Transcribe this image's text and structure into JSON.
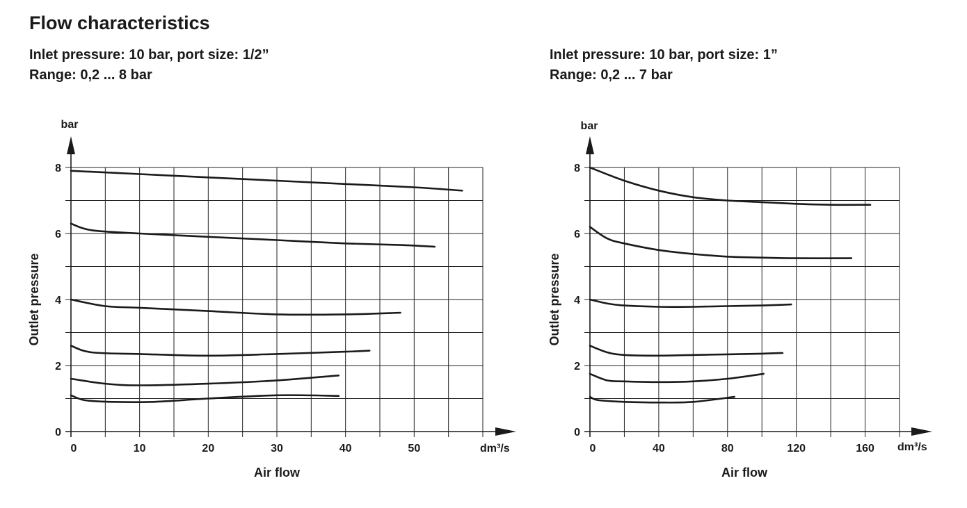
{
  "page": {
    "title": "Flow characteristics"
  },
  "colors": {
    "ink": "#1a1a1a",
    "grid": "#222222"
  },
  "chart_data": [
    {
      "type": "line",
      "subtitle": "Inlet pressure: 10 bar, port size: 1/2”",
      "range": "Range: 0,2 ... 8 bar",
      "xlabel": "Air flow",
      "x_unit": "dm³/s",
      "ylabel": "Outlet pressure",
      "y_unit": "bar",
      "xlim": [
        0,
        60
      ],
      "ylim": [
        0,
        8
      ],
      "x_ticks": [
        0,
        10,
        20,
        30,
        40,
        50
      ],
      "y_ticks": [
        0,
        2,
        4,
        6,
        8
      ],
      "x_grid_step": 5,
      "y_grid_step": 1,
      "grid": true,
      "series": [
        {
          "x": [
            0,
            10,
            20,
            30,
            40,
            50,
            57
          ],
          "y": [
            7.9,
            7.8,
            7.7,
            7.6,
            7.5,
            7.4,
            7.3
          ]
        },
        {
          "x": [
            0,
            3,
            10,
            20,
            30,
            40,
            48,
            53
          ],
          "y": [
            6.3,
            6.1,
            6.0,
            5.9,
            5.8,
            5.7,
            5.65,
            5.6
          ]
        },
        {
          "x": [
            0,
            5,
            10,
            20,
            30,
            40,
            48
          ],
          "y": [
            4.0,
            3.8,
            3.75,
            3.65,
            3.55,
            3.55,
            3.6
          ]
        },
        {
          "x": [
            0,
            3,
            10,
            20,
            30,
            40,
            43.5
          ],
          "y": [
            2.6,
            2.4,
            2.35,
            2.3,
            2.35,
            2.42,
            2.45
          ]
        },
        {
          "x": [
            0,
            5,
            10,
            20,
            30,
            39
          ],
          "y": [
            1.6,
            1.45,
            1.4,
            1.45,
            1.55,
            1.7
          ]
        },
        {
          "x": [
            0,
            2,
            6,
            12,
            20,
            30,
            39
          ],
          "y": [
            1.1,
            0.95,
            0.9,
            0.9,
            1.0,
            1.1,
            1.08
          ]
        }
      ]
    },
    {
      "type": "line",
      "subtitle": "Inlet pressure: 10 bar, port size: 1”",
      "range": "Range: 0,2 ... 7 bar",
      "xlabel": "Air flow",
      "x_unit": "dm³/s",
      "ylabel": "Outlet pressure",
      "y_unit": "bar",
      "xlim": [
        0,
        180
      ],
      "ylim": [
        0,
        8
      ],
      "x_ticks": [
        0,
        40,
        80,
        120,
        160
      ],
      "y_ticks": [
        0,
        2,
        4,
        6,
        8
      ],
      "x_grid_step": 20,
      "y_grid_step": 1,
      "grid": true,
      "series": [
        {
          "x": [
            0,
            20,
            40,
            60,
            80,
            100,
            120,
            140,
            163
          ],
          "y": [
            8.0,
            7.6,
            7.3,
            7.1,
            7.0,
            6.95,
            6.9,
            6.87,
            6.87
          ]
        },
        {
          "x": [
            0,
            10,
            20,
            40,
            60,
            80,
            100,
            120,
            152
          ],
          "y": [
            6.2,
            5.85,
            5.7,
            5.5,
            5.38,
            5.3,
            5.27,
            5.25,
            5.25
          ]
        },
        {
          "x": [
            0,
            10,
            20,
            40,
            60,
            80,
            100,
            117
          ],
          "y": [
            4.0,
            3.88,
            3.82,
            3.78,
            3.78,
            3.8,
            3.82,
            3.85
          ]
        },
        {
          "x": [
            0,
            10,
            20,
            40,
            60,
            80,
            100,
            112
          ],
          "y": [
            2.6,
            2.4,
            2.32,
            2.3,
            2.32,
            2.34,
            2.36,
            2.38
          ]
        },
        {
          "x": [
            0,
            10,
            20,
            40,
            60,
            80,
            101
          ],
          "y": [
            1.75,
            1.55,
            1.52,
            1.5,
            1.52,
            1.6,
            1.75
          ]
        },
        {
          "x": [
            0,
            5,
            20,
            40,
            60,
            84
          ],
          "y": [
            1.05,
            0.95,
            0.9,
            0.88,
            0.9,
            1.05
          ]
        }
      ]
    }
  ]
}
